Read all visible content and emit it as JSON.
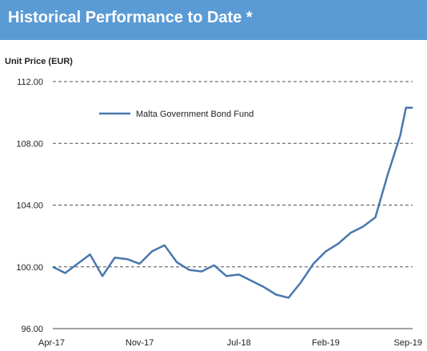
{
  "header": {
    "title": "Historical Performance to Date *"
  },
  "colors": {
    "header_bg": "#5b9bd5",
    "series": "#4a78ad",
    "grid": "#555555"
  },
  "chart_data": {
    "type": "line",
    "ylabel": "Unit Price (EUR)",
    "ylim": [
      96,
      112
    ],
    "yticks": [
      "96.00",
      "100.00",
      "104.00",
      "108.00",
      "112.00"
    ],
    "ytick_values": [
      96,
      100,
      104,
      108,
      112
    ],
    "xticks": [
      "Apr-17",
      "Nov-17",
      "Jul-18",
      "Feb-19",
      "Sep-19"
    ],
    "xtick_values": [
      "2017-04",
      "2017-11",
      "2018-07",
      "2019-02",
      "2019-09"
    ],
    "grid": "horizontal dashed",
    "legend_position": "top-left",
    "series": [
      {
        "name": "Malta Government Bond Fund",
        "points": [
          [
            "2017-04",
            100.0
          ],
          [
            "2017-05",
            99.6
          ],
          [
            "2017-06",
            100.2
          ],
          [
            "2017-07",
            100.8
          ],
          [
            "2017-08",
            99.4
          ],
          [
            "2017-09",
            100.6
          ],
          [
            "2017-10",
            100.5
          ],
          [
            "2017-11",
            100.2
          ],
          [
            "2017-12",
            101.0
          ],
          [
            "2018-01",
            101.4
          ],
          [
            "2018-02",
            100.3
          ],
          [
            "2018-03",
            99.8
          ],
          [
            "2018-04",
            99.7
          ],
          [
            "2018-05",
            100.1
          ],
          [
            "2018-06",
            99.4
          ],
          [
            "2018-07",
            99.5
          ],
          [
            "2018-08",
            99.1
          ],
          [
            "2018-09",
            98.7
          ],
          [
            "2018-10",
            98.2
          ],
          [
            "2018-11",
            98.0
          ],
          [
            "2018-12",
            99.0
          ],
          [
            "2019-01",
            100.2
          ],
          [
            "2019-02",
            101.0
          ],
          [
            "2019-03",
            101.5
          ],
          [
            "2019-04",
            102.2
          ],
          [
            "2019-05",
            102.6
          ],
          [
            "2019-06",
            103.2
          ],
          [
            "2019-07",
            106.0
          ],
          [
            "2019-08",
            108.5
          ],
          [
            "2019-08-15",
            110.3
          ],
          [
            "2019-09",
            110.3
          ]
        ]
      }
    ]
  }
}
